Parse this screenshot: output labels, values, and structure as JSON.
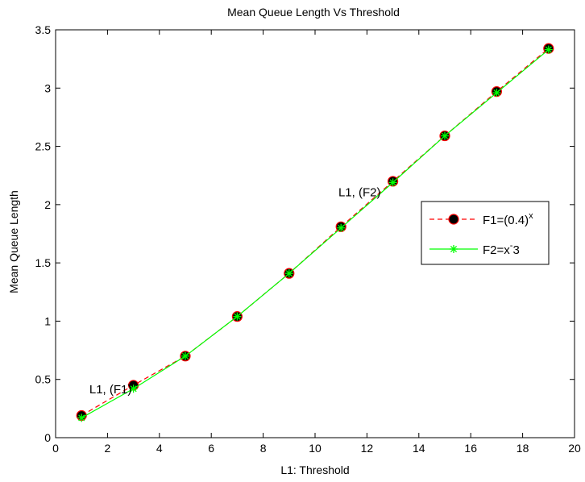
{
  "chart_data": {
    "type": "line",
    "title": "Mean Queue Length Vs Threshold",
    "xlabel": "L1: Threshold",
    "ylabel": "Mean Queue Length",
    "xlim": [
      0,
      20
    ],
    "ylim": [
      0,
      3.5
    ],
    "xticks": [
      "0",
      "2",
      "4",
      "6",
      "8",
      "10",
      "12",
      "14",
      "16",
      "18",
      "20"
    ],
    "yticks": [
      "0",
      "0.5",
      "1",
      "1.5",
      "2",
      "2.5",
      "3",
      "3.5"
    ],
    "grid": false,
    "legend_position": "right",
    "x": [
      1,
      3,
      5,
      7,
      9,
      11,
      13,
      15,
      17,
      19
    ],
    "series": [
      {
        "name": "F1=(0.4)",
        "name_sup": "x",
        "values": [
          0.19,
          0.45,
          0.7,
          1.04,
          1.41,
          1.81,
          2.2,
          2.59,
          2.97,
          3.34
        ],
        "color": "#ff0000",
        "marker": "circle",
        "marker_fill": "#000000",
        "line_style": "dashed"
      },
      {
        "name": "F2=x",
        "name_sup": "-",
        "name_suffix": "3",
        "values": [
          0.17,
          0.42,
          0.7,
          1.04,
          1.41,
          1.8,
          2.19,
          2.59,
          2.96,
          3.33
        ],
        "color": "#00ff00",
        "marker": "star",
        "line_style": "solid"
      }
    ],
    "annotations": [
      {
        "text": "L1, (F1)",
        "x": 1.3,
        "y": 0.38
      },
      {
        "text": "L1, (F2)",
        "x": 10.9,
        "y": 2.07
      }
    ]
  }
}
